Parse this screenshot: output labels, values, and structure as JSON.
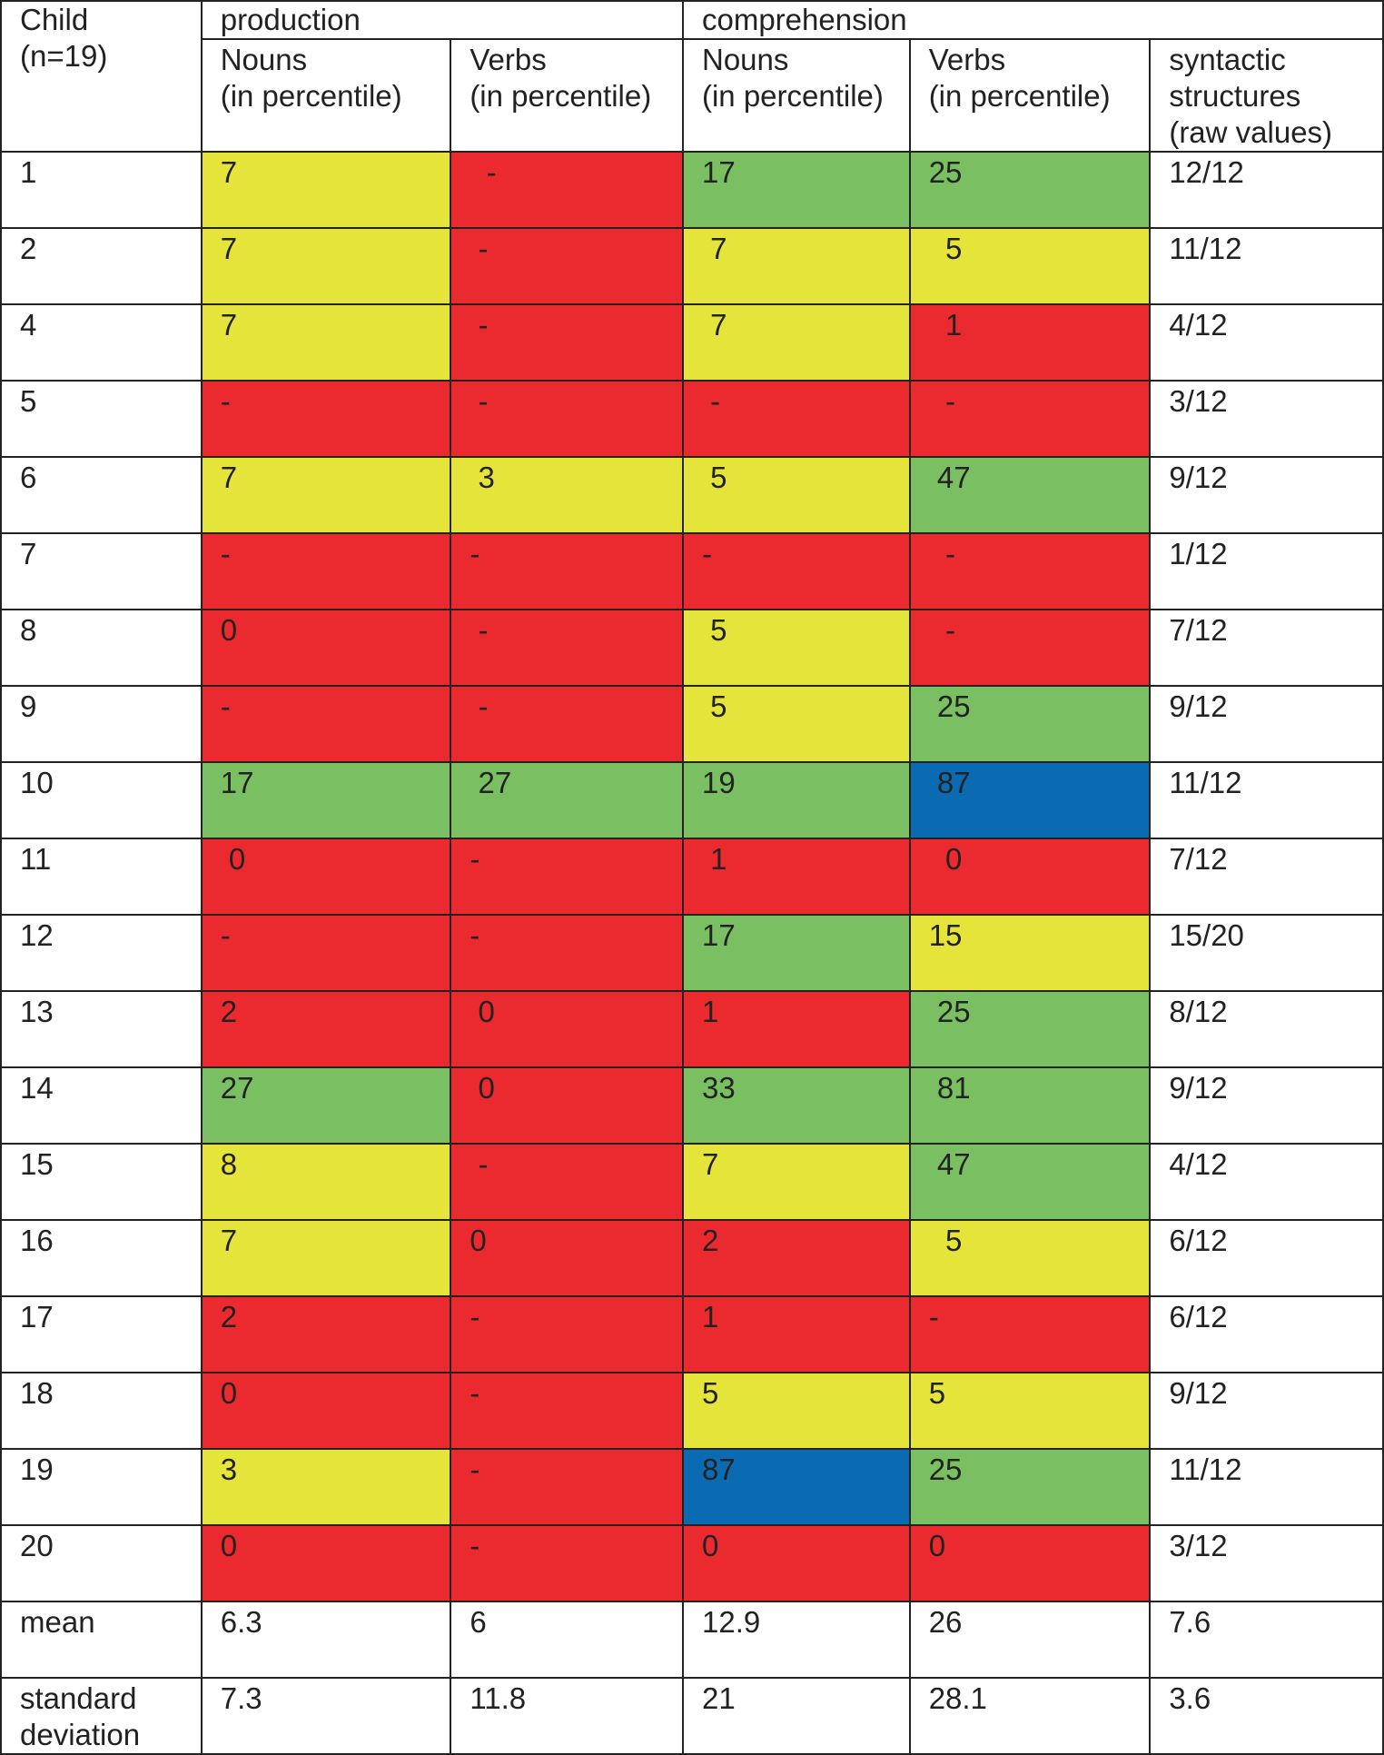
{
  "header": {
    "child_col": "Child\n(n=19)",
    "production": "production",
    "comprehension": "comprehension",
    "prod_nouns": "Nouns\n(in percentile)",
    "prod_verbs": "Verbs\n(in percentile)",
    "comp_nouns": "Nouns\n(in percentile)",
    "comp_verbs": "Verbs\n(in percentile)",
    "syntactic": "syntactic\nstructures\n(raw values)"
  },
  "colors": {
    "yellow": "#e5e43b",
    "red": "#ea2a2e",
    "green": "#7ac063",
    "blue": "#0a6bb3",
    "white": "#ffffff"
  },
  "rows": [
    {
      "child": "1",
      "pn": "7",
      "pv": "  -",
      "cn": "17",
      "cv": "25",
      "syn": "12/12",
      "pn_c": "yellow",
      "pv_c": "red",
      "cn_c": "green",
      "cv_c": "green"
    },
    {
      "child": "2",
      "pn": "7",
      "pv": " -",
      "cn": " 7",
      "cv": "  5",
      "syn": "11/12",
      "pn_c": "yellow",
      "pv_c": "red",
      "cn_c": "yellow",
      "cv_c": "yellow"
    },
    {
      "child": "4",
      "pn": "7",
      "pv": " -",
      "cn": " 7",
      "cv": "  1",
      "syn": "4/12",
      "pn_c": "yellow",
      "pv_c": "red",
      "cn_c": "yellow",
      "cv_c": "red"
    },
    {
      "child": "5",
      "pn": "-",
      "pv": " -",
      "cn": " -",
      "cv": "  -",
      "syn": "3/12",
      "pn_c": "red",
      "pv_c": "red",
      "cn_c": "red",
      "cv_c": "red"
    },
    {
      "child": "6",
      "pn": "7",
      "pv": " 3",
      "cn": " 5",
      "cv": " 47",
      "syn": "9/12",
      "pn_c": "yellow",
      "pv_c": "yellow",
      "cn_c": "yellow",
      "cv_c": "green"
    },
    {
      "child": "7",
      "pn": "-",
      "pv": "-",
      "cn": "-",
      "cv": "  -",
      "syn": "1/12",
      "pn_c": "red",
      "pv_c": "red",
      "cn_c": "red",
      "cv_c": "red"
    },
    {
      "child": "8",
      "pn": "0",
      "pv": " -",
      "cn": " 5",
      "cv": "  -",
      "syn": "7/12",
      "pn_c": "red",
      "pv_c": "red",
      "cn_c": "yellow",
      "cv_c": "red"
    },
    {
      "child": "9",
      "pn": "-",
      "pv": " -",
      "cn": " 5",
      "cv": " 25",
      "syn": "9/12",
      "pn_c": "red",
      "pv_c": "red",
      "cn_c": "yellow",
      "cv_c": "green"
    },
    {
      "child": "10",
      "pn": "17",
      "pv": " 27",
      "cn": "19",
      "cv": " 87",
      "syn": "11/12",
      "pn_c": "green",
      "pv_c": "green",
      "cn_c": "green",
      "cv_c": "blue"
    },
    {
      "child": "11",
      "pn": " 0",
      "pv": "-",
      "cn": " 1",
      "cv": "  0",
      "syn": "7/12",
      "pn_c": "red",
      "pv_c": "red",
      "cn_c": "red",
      "cv_c": "red"
    },
    {
      "child": "12",
      "pn": "-",
      "pv": "-",
      "cn": "17",
      "cv": "15",
      "syn": "15/20",
      "pn_c": "red",
      "pv_c": "red",
      "cn_c": "green",
      "cv_c": "yellow"
    },
    {
      "child": "13",
      "pn": "2",
      "pv": " 0",
      "cn": "1",
      "cv": " 25",
      "syn": "8/12",
      "pn_c": "red",
      "pv_c": "red",
      "cn_c": "red",
      "cv_c": "green"
    },
    {
      "child": "14",
      "pn": "27",
      "pv": " 0",
      "cn": "33",
      "cv": " 81",
      "syn": "9/12",
      "pn_c": "green",
      "pv_c": "red",
      "cn_c": "green",
      "cv_c": "green"
    },
    {
      "child": "15",
      "pn": "8",
      "pv": " -",
      "cn": "7",
      "cv": " 47",
      "syn": "4/12",
      "pn_c": "yellow",
      "pv_c": "red",
      "cn_c": "yellow",
      "cv_c": "green"
    },
    {
      "child": "16",
      "pn": "7",
      "pv": "0",
      "cn": "2",
      "cv": "  5",
      "syn": "6/12",
      "pn_c": "yellow",
      "pv_c": "red",
      "cn_c": "red",
      "cv_c": "yellow"
    },
    {
      "child": "17",
      "pn": "2",
      "pv": "-",
      "cn": "1",
      "cv": "-",
      "syn": "6/12",
      "pn_c": "red",
      "pv_c": "red",
      "cn_c": "red",
      "cv_c": "red"
    },
    {
      "child": "18",
      "pn": "0",
      "pv": "-",
      "cn": "5",
      "cv": "5",
      "syn": "9/12",
      "pn_c": "red",
      "pv_c": "red",
      "cn_c": "yellow",
      "cv_c": "yellow"
    },
    {
      "child": "19",
      "pn": "3",
      "pv": "-",
      "cn": "87",
      "cv": "25",
      "syn": "11/12",
      "pn_c": "yellow",
      "pv_c": "red",
      "cn_c": "blue",
      "cv_c": "green"
    },
    {
      "child": "20",
      "pn": "0",
      "pv": "-",
      "cn": "0",
      "cv": "0",
      "syn": "3/12",
      "pn_c": "red",
      "pv_c": "red",
      "cn_c": "red",
      "cv_c": "red"
    }
  ],
  "mean": {
    "label": "mean",
    "pn": "6.3",
    "pv": "6",
    "cn": "12.9",
    "cv": "26",
    "syn": "7.6"
  },
  "sd": {
    "label": "standard\ndeviation",
    "pn": "7.3",
    "pv": "11.8",
    "cn": "21",
    "cv": "28.1",
    "syn": "3.6"
  }
}
